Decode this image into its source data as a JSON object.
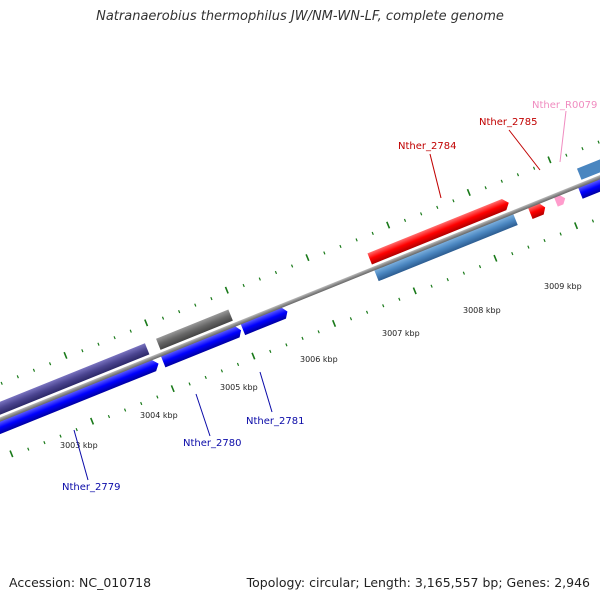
{
  "title": "Natranaerobius thermophilus JW/NM-WN-LF, complete genome",
  "footer": {
    "accession": "Accession: NC_010718",
    "summary": "Topology: circular; Length: 3,165,557 bp; Genes: 2,946"
  },
  "ticks": [
    {
      "label": "3003 kbp"
    },
    {
      "label": "3004 kbp"
    },
    {
      "label": "3005 kbp"
    },
    {
      "label": "3006 kbp"
    },
    {
      "label": "3007 kbp"
    },
    {
      "label": "3008 kbp"
    },
    {
      "label": "3009 kbp"
    }
  ],
  "genes": [
    {
      "label": "Nther_2779",
      "color": "#0a0aa8"
    },
    {
      "label": "Nther_2780",
      "color": "#0a0aa8"
    },
    {
      "label": "Nther_2781",
      "color": "#0a0aa8"
    },
    {
      "label": "Nther_2784",
      "color": "#c00000"
    },
    {
      "label": "Nther_2785",
      "color": "#c00000"
    },
    {
      "label": "Nther_R0079",
      "color": "#f08cc0"
    }
  ],
  "colors": {
    "backbone": "#8c8c8c",
    "cds_blue": "#0000ff",
    "cds_navy": "#4a4490",
    "cds_steel": "#4a86c0",
    "cds_red": "#ff0000",
    "cds_gray": "#666666",
    "rrna_pink": "#ff9ccc",
    "gc_tick": "#1a7a1a"
  }
}
